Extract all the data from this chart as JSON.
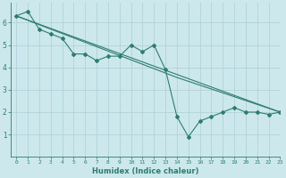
{
  "xlabel": "Humidex (Indice chaleur)",
  "ylabel": "",
  "bg_color": "#cce8ec",
  "line_color": "#2e7d6e",
  "grid_color": "#aacfd6",
  "series1_x": [
    0,
    1,
    2,
    3,
    4,
    5,
    6,
    7,
    8,
    9,
    10,
    11,
    12,
    13,
    14,
    15,
    16,
    17,
    18,
    19,
    20,
    21,
    22,
    23
  ],
  "series1_y": [
    6.3,
    6.5,
    5.7,
    5.5,
    5.3,
    4.6,
    4.6,
    4.3,
    4.5,
    4.5,
    5.0,
    4.7,
    5.0,
    3.9,
    1.8,
    0.9,
    1.6,
    1.8,
    2.0,
    2.2,
    2.0,
    2.0,
    1.9,
    2.0
  ],
  "series2_x": [
    0,
    23
  ],
  "series2_y": [
    6.3,
    2.0
  ],
  "series3_x": [
    0,
    14,
    23
  ],
  "series3_y": [
    6.3,
    3.55,
    2.0
  ],
  "xlim": [
    -0.5,
    23
  ],
  "ylim": [
    0,
    6.9
  ],
  "yticks": [
    1,
    2,
    3,
    4,
    5,
    6
  ],
  "xticks": [
    0,
    1,
    2,
    3,
    4,
    5,
    6,
    7,
    8,
    9,
    10,
    11,
    12,
    13,
    14,
    15,
    16,
    17,
    18,
    19,
    20,
    21,
    22,
    23
  ],
  "xlabel_fontsize": 6.0,
  "xtick_fontsize": 4.5,
  "ytick_fontsize": 5.5
}
